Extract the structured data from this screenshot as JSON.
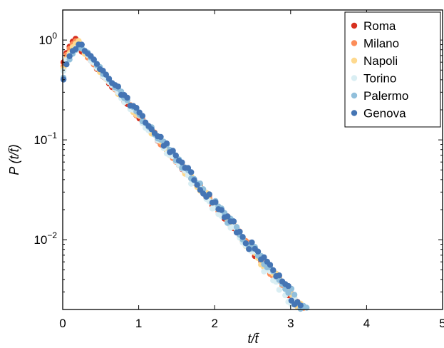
{
  "chart_data": {
    "type": "scatter",
    "xlabel": "t/t̄",
    "ylabel": "P (t/t̄)",
    "xlim": [
      0,
      5
    ],
    "ylim": [
      0.002,
      2
    ],
    "yscale": "log",
    "grid": false,
    "legend_position": "top-right",
    "x_ticks": [
      {
        "value": 0,
        "label": "0"
      },
      {
        "value": 1,
        "label": "1"
      },
      {
        "value": 2,
        "label": "2"
      },
      {
        "value": 3,
        "label": "3"
      },
      {
        "value": 4,
        "label": "4"
      },
      {
        "value": 5,
        "label": "5"
      }
    ],
    "y_ticks": [
      {
        "value": 1,
        "base": "10",
        "exp": "0"
      },
      {
        "value": 0.1,
        "base": "10",
        "exp": "−1"
      },
      {
        "value": 0.01,
        "base": "10",
        "exp": "−2"
      }
    ],
    "series": [
      {
        "name": "Roma",
        "color": "#d7301f",
        "decay": 2.04,
        "amp": 1.3,
        "peak_x": 0.2,
        "peak_y": 1.07,
        "start_y": 0.5,
        "x_end": 5.0,
        "noise": 0.06
      },
      {
        "name": "Milano",
        "color": "#fc8d59",
        "decay": 2.05,
        "amp": 1.35,
        "peak_x": 0.2,
        "peak_y": 1.03,
        "start_y": 0.45,
        "x_end": 5.0,
        "noise": 0.07
      },
      {
        "name": "Napoli",
        "color": "#fed98e",
        "decay": 2.06,
        "amp": 1.35,
        "peak_x": 0.22,
        "peak_y": 0.98,
        "start_y": 0.42,
        "x_end": 5.0,
        "noise": 0.07
      },
      {
        "name": "Torino",
        "color": "#d9eef3",
        "decay": 2.1,
        "amp": 1.4,
        "peak_x": 0.2,
        "peak_y": 0.9,
        "start_y": 0.4,
        "x_end": 4.95,
        "noise": 0.1
      },
      {
        "name": "Palermo",
        "color": "#91bfdb",
        "decay": 2.06,
        "amp": 1.42,
        "peak_x": 0.22,
        "peak_y": 0.88,
        "start_y": 0.35,
        "x_end": 5.0,
        "noise": 0.08
      },
      {
        "name": "Genova",
        "color": "#4575b4",
        "decay": 2.08,
        "amp": 1.48,
        "peak_x": 0.2,
        "peak_y": 0.88,
        "start_y": 0.32,
        "x_end": 4.98,
        "noise": 0.09
      }
    ]
  }
}
